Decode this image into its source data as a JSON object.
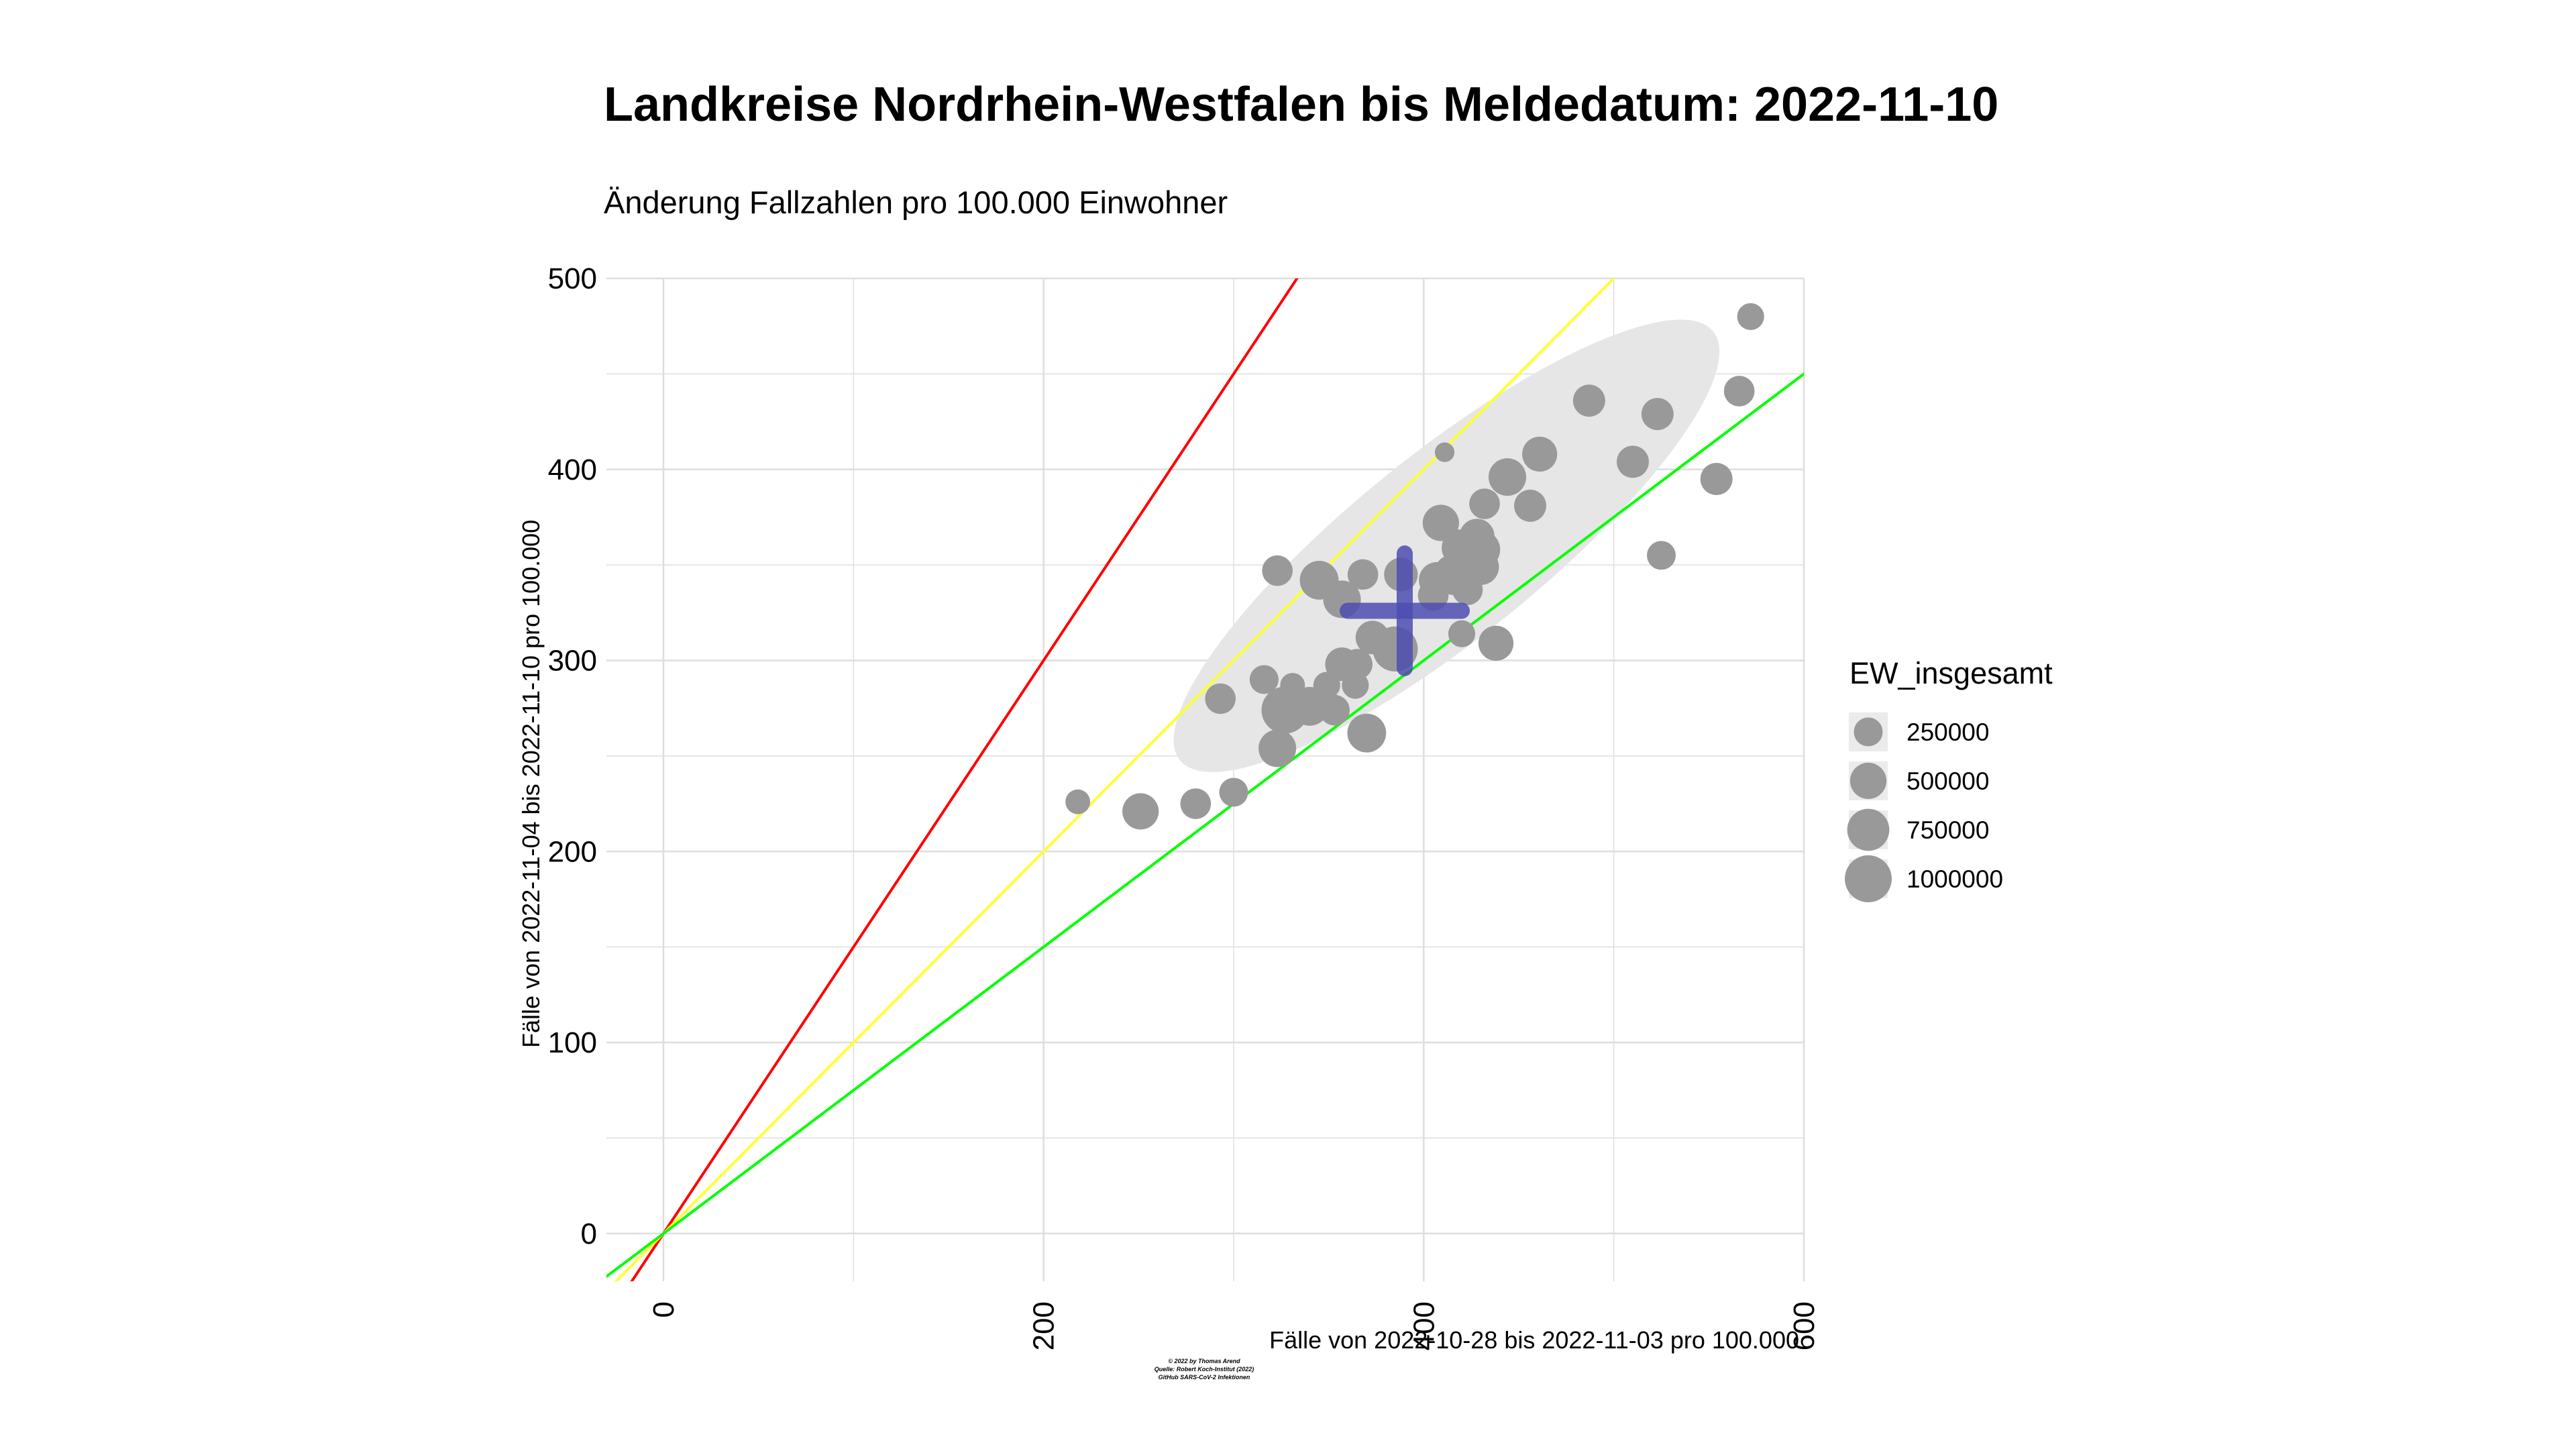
{
  "chart_data": {
    "type": "scatter",
    "title": "Landkreise Nordrhein-Westfalen bis Meldedatum: 2022-11-10",
    "subtitle": "Änderung Fallzahlen pro 100.000 Einwohner",
    "xlabel": "Fälle von 2022-10-28 bis 2022-11-03 pro 100.000",
    "ylabel": "Fälle von 2022-11-04 bis 2022-11-10 pro 100.000",
    "xlim": [
      -30,
      600
    ],
    "ylim": [
      -25,
      500
    ],
    "x_ticks": [
      0,
      200,
      400,
      600
    ],
    "y_ticks": [
      0,
      100,
      200,
      300,
      400,
      500
    ],
    "grid": true,
    "legend": {
      "title": "EW_insgesamt",
      "position": "right",
      "entries": [
        {
          "label": "250000",
          "value": 250000
        },
        {
          "label": "500000",
          "value": 500000
        },
        {
          "label": "750000",
          "value": 750000
        },
        {
          "label": "1000000",
          "value": 1000000
        }
      ]
    },
    "reference_lines": [
      {
        "slope": 1.5,
        "color": "#ff0000"
      },
      {
        "slope": 1.0,
        "color": "#ffff33"
      },
      {
        "slope": 0.75,
        "color": "#00ff00"
      }
    ],
    "ellipse": {
      "center": [
        412,
        360
      ],
      "color": "#e6e6e6"
    },
    "mean_marker": {
      "x": 390,
      "y": 326,
      "x_range": [
        360,
        420
      ],
      "y_range": [
        296,
        356
      ],
      "color": "#4c4cb0"
    },
    "point_color": "#999999",
    "points": [
      {
        "x": 218,
        "y": 226,
        "ew": 150000
      },
      {
        "x": 251,
        "y": 221,
        "ew": 500000
      },
      {
        "x": 280,
        "y": 225,
        "ew": 300000
      },
      {
        "x": 300,
        "y": 231,
        "ew": 250000
      },
      {
        "x": 293,
        "y": 280,
        "ew": 300000
      },
      {
        "x": 316,
        "y": 290,
        "ew": 250000
      },
      {
        "x": 323,
        "y": 347,
        "ew": 300000
      },
      {
        "x": 323,
        "y": 254,
        "ew": 550000
      },
      {
        "x": 327,
        "y": 274,
        "ew": 1000000
      },
      {
        "x": 331,
        "y": 287,
        "ew": 150000
      },
      {
        "x": 340,
        "y": 276,
        "ew": 600000
      },
      {
        "x": 345,
        "y": 342,
        "ew": 600000
      },
      {
        "x": 349,
        "y": 287,
        "ew": 200000
      },
      {
        "x": 353,
        "y": 274,
        "ew": 300000
      },
      {
        "x": 357,
        "y": 332,
        "ew": 550000
      },
      {
        "x": 357,
        "y": 298,
        "ew": 400000
      },
      {
        "x": 365,
        "y": 298,
        "ew": 300000
      },
      {
        "x": 364,
        "y": 287,
        "ew": 200000
      },
      {
        "x": 368,
        "y": 345,
        "ew": 300000
      },
      {
        "x": 370,
        "y": 262,
        "ew": 600000
      },
      {
        "x": 373,
        "y": 312,
        "ew": 400000
      },
      {
        "x": 385,
        "y": 306,
        "ew": 900000
      },
      {
        "x": 388,
        "y": 345,
        "ew": 400000
      },
      {
        "x": 405,
        "y": 334,
        "ew": 300000
      },
      {
        "x": 407,
        "y": 342,
        "ew": 500000
      },
      {
        "x": 409,
        "y": 372,
        "ew": 500000
      },
      {
        "x": 411,
        "y": 409,
        "ew": 60000
      },
      {
        "x": 416,
        "y": 345,
        "ew": 700000
      },
      {
        "x": 419,
        "y": 359,
        "ew": 500000
      },
      {
        "x": 420,
        "y": 314,
        "ew": 200000
      },
      {
        "x": 423,
        "y": 337,
        "ew": 300000
      },
      {
        "x": 428,
        "y": 365,
        "ew": 450000
      },
      {
        "x": 430,
        "y": 358,
        "ew": 600000
      },
      {
        "x": 430,
        "y": 349,
        "ew": 500000
      },
      {
        "x": 432,
        "y": 382,
        "ew": 300000
      },
      {
        "x": 438,
        "y": 309,
        "ew": 450000
      },
      {
        "x": 444,
        "y": 396,
        "ew": 550000
      },
      {
        "x": 456,
        "y": 381,
        "ew": 350000
      },
      {
        "x": 461,
        "y": 408,
        "ew": 450000
      },
      {
        "x": 487,
        "y": 436,
        "ew": 350000
      },
      {
        "x": 510,
        "y": 404,
        "ew": 350000
      },
      {
        "x": 523,
        "y": 429,
        "ew": 350000
      },
      {
        "x": 525,
        "y": 355,
        "ew": 250000
      },
      {
        "x": 554,
        "y": 395,
        "ew": 350000
      },
      {
        "x": 566,
        "y": 441,
        "ew": 300000
      },
      {
        "x": 572,
        "y": 480,
        "ew": 200000
      }
    ]
  },
  "caption": {
    "line1": "© 2022 by Thomas Arend",
    "line2": "Quelle: Robert Koch-Institut (2022)",
    "line3": "GitHub SARS-CoV-2 Infektionen"
  }
}
